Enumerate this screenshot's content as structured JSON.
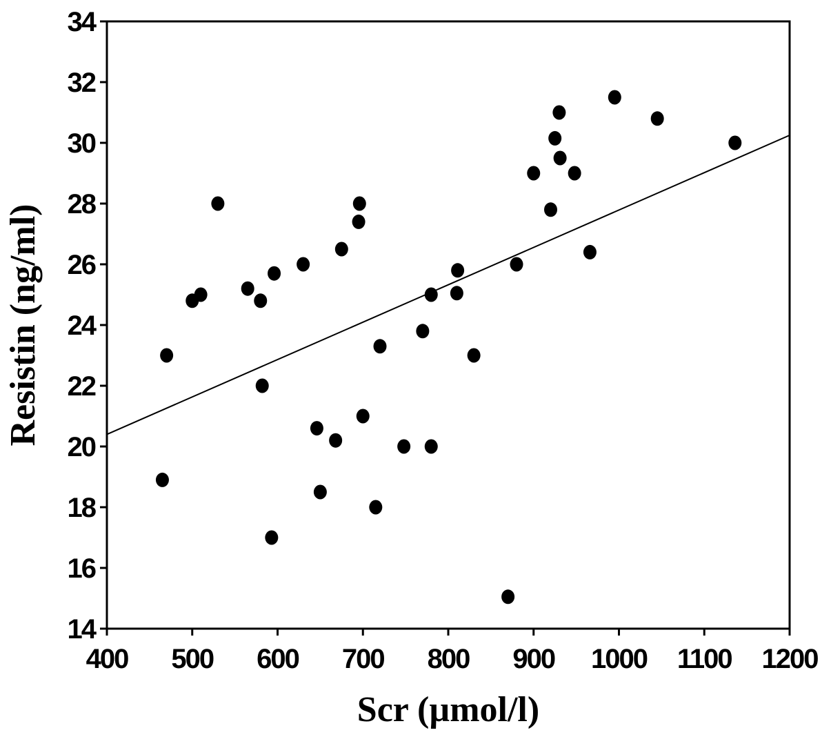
{
  "chart_data": {
    "type": "scatter",
    "xlabel": "Scr (µmol/l)",
    "ylabel": "Resistin (ng/ml)",
    "xlim": [
      400,
      1200
    ],
    "ylim": [
      14,
      34
    ],
    "xticks": [
      400,
      500,
      600,
      700,
      800,
      900,
      1000,
      1100,
      1200
    ],
    "yticks": [
      14,
      16,
      18,
      20,
      22,
      24,
      26,
      28,
      30,
      32,
      34
    ],
    "grid": false,
    "legend": "none",
    "marker_color": "#000000",
    "points": [
      {
        "x": 465,
        "y": 18.9
      },
      {
        "x": 470,
        "y": 23.0
      },
      {
        "x": 500,
        "y": 24.8
      },
      {
        "x": 510,
        "y": 25.0
      },
      {
        "x": 530,
        "y": 28.0
      },
      {
        "x": 565,
        "y": 25.2
      },
      {
        "x": 580,
        "y": 24.8
      },
      {
        "x": 582,
        "y": 22.0
      },
      {
        "x": 593,
        "y": 17.0
      },
      {
        "x": 596,
        "y": 25.7
      },
      {
        "x": 630,
        "y": 26.0
      },
      {
        "x": 646,
        "y": 20.6
      },
      {
        "x": 650,
        "y": 18.5
      },
      {
        "x": 668,
        "y": 20.2
      },
      {
        "x": 675,
        "y": 26.5
      },
      {
        "x": 695,
        "y": 27.4
      },
      {
        "x": 696,
        "y": 28.0
      },
      {
        "x": 700,
        "y": 21.0
      },
      {
        "x": 715,
        "y": 18.0
      },
      {
        "x": 720,
        "y": 23.3
      },
      {
        "x": 748,
        "y": 20.0
      },
      {
        "x": 770,
        "y": 23.8
      },
      {
        "x": 780,
        "y": 25.0
      },
      {
        "x": 780,
        "y": 20.0
      },
      {
        "x": 810,
        "y": 25.05
      },
      {
        "x": 811,
        "y": 25.8
      },
      {
        "x": 830,
        "y": 23.0
      },
      {
        "x": 870,
        "y": 15.05
      },
      {
        "x": 880,
        "y": 26.0
      },
      {
        "x": 900,
        "y": 29.0
      },
      {
        "x": 920,
        "y": 27.8
      },
      {
        "x": 925,
        "y": 30.15
      },
      {
        "x": 930,
        "y": 31.0
      },
      {
        "x": 931,
        "y": 29.5
      },
      {
        "x": 948,
        "y": 29.0
      },
      {
        "x": 966,
        "y": 26.4
      },
      {
        "x": 995,
        "y": 31.5
      },
      {
        "x": 1045,
        "y": 30.8
      },
      {
        "x": 1136,
        "y": 30.0
      }
    ],
    "trendline": {
      "x": [
        400,
        1200
      ],
      "y": [
        20.4,
        30.25
      ]
    }
  }
}
